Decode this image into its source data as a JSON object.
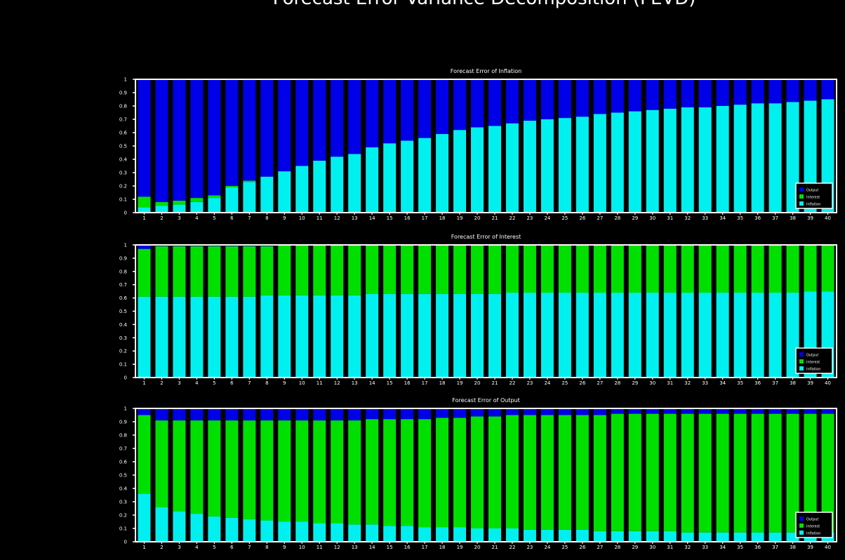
{
  "figure": {
    "title": "Forecast Error Variance Decomposition (FEVD)"
  },
  "colors": {
    "background": "#000000",
    "axes": "#ffffff",
    "Inflation": "#00f0f0",
    "Interest": "#00e000",
    "Output": "#0000e8"
  },
  "chart_data": [
    {
      "type": "bar",
      "stacked": true,
      "title": "Forecast Error of Inflation",
      "x": [
        1,
        2,
        3,
        4,
        5,
        6,
        7,
        8,
        9,
        10,
        11,
        12,
        13,
        14,
        15,
        16,
        17,
        18,
        19,
        20,
        21,
        22,
        23,
        24,
        25,
        26,
        27,
        28,
        29,
        30,
        31,
        32,
        33,
        34,
        35,
        36,
        37,
        38,
        39,
        40
      ],
      "ylim": [
        0,
        1
      ],
      "grid": false,
      "legend": "bottom-right",
      "series": [
        {
          "name": "Inflation",
          "values": [
            0.04,
            0.05,
            0.06,
            0.08,
            0.11,
            0.19,
            0.23,
            0.27,
            0.31,
            0.35,
            0.39,
            0.42,
            0.44,
            0.49,
            0.52,
            0.54,
            0.56,
            0.59,
            0.62,
            0.64,
            0.65,
            0.67,
            0.69,
            0.7,
            0.71,
            0.72,
            0.74,
            0.75,
            0.76,
            0.77,
            0.78,
            0.79,
            0.79,
            0.8,
            0.81,
            0.82,
            0.82,
            0.83,
            0.84,
            0.85
          ]
        },
        {
          "name": "Interest",
          "values": [
            0.08,
            0.03,
            0.03,
            0.03,
            0.02,
            0.01,
            0.01,
            0,
            0,
            0,
            0,
            0,
            0,
            0,
            0,
            0,
            0,
            0,
            0,
            0,
            0,
            0,
            0,
            0,
            0,
            0,
            0,
            0,
            0,
            0,
            0,
            0,
            0,
            0,
            0,
            0,
            0,
            0,
            0,
            0
          ]
        },
        {
          "name": "Output",
          "values": [
            0.88,
            0.92,
            0.91,
            0.89,
            0.87,
            0.8,
            0.76,
            0.73,
            0.69,
            0.65,
            0.61,
            0.58,
            0.56,
            0.51,
            0.48,
            0.46,
            0.44,
            0.41,
            0.38,
            0.36,
            0.35,
            0.33,
            0.31,
            0.3,
            0.29,
            0.28,
            0.26,
            0.25,
            0.24,
            0.23,
            0.22,
            0.21,
            0.21,
            0.2,
            0.19,
            0.18,
            0.18,
            0.17,
            0.16,
            0.15
          ]
        }
      ]
    },
    {
      "type": "bar",
      "stacked": true,
      "title": "Forecast Error of Interest",
      "x": [
        1,
        2,
        3,
        4,
        5,
        6,
        7,
        8,
        9,
        10,
        11,
        12,
        13,
        14,
        15,
        16,
        17,
        18,
        19,
        20,
        21,
        22,
        23,
        24,
        25,
        26,
        27,
        28,
        29,
        30,
        31,
        32,
        33,
        34,
        35,
        36,
        37,
        38,
        39,
        40
      ],
      "ylim": [
        0,
        1
      ],
      "grid": false,
      "legend": "bottom-right",
      "series": [
        {
          "name": "Inflation",
          "values": [
            0.61,
            0.61,
            0.61,
            0.61,
            0.61,
            0.61,
            0.61,
            0.62,
            0.62,
            0.62,
            0.62,
            0.62,
            0.62,
            0.63,
            0.63,
            0.63,
            0.63,
            0.63,
            0.63,
            0.63,
            0.63,
            0.64,
            0.64,
            0.64,
            0.64,
            0.64,
            0.64,
            0.64,
            0.64,
            0.64,
            0.64,
            0.64,
            0.64,
            0.64,
            0.64,
            0.64,
            0.64,
            0.64,
            0.65,
            0.65
          ]
        },
        {
          "name": "Interest",
          "values": [
            0.36,
            0.38,
            0.38,
            0.38,
            0.38,
            0.38,
            0.38,
            0.37,
            0.38,
            0.38,
            0.38,
            0.38,
            0.38,
            0.37,
            0.37,
            0.37,
            0.37,
            0.37,
            0.37,
            0.37,
            0.37,
            0.36,
            0.36,
            0.36,
            0.36,
            0.36,
            0.36,
            0.36,
            0.36,
            0.36,
            0.36,
            0.36,
            0.36,
            0.36,
            0.36,
            0.36,
            0.36,
            0.36,
            0.35,
            0.35
          ]
        },
        {
          "name": "Output",
          "values": [
            0.03,
            0.01,
            0.01,
            0.01,
            0.01,
            0.01,
            0.01,
            0.01,
            0,
            0,
            0,
            0,
            0,
            0,
            0,
            0,
            0,
            0,
            0,
            0,
            0,
            0,
            0,
            0,
            0,
            0,
            0,
            0,
            0,
            0,
            0,
            0,
            0,
            0,
            0,
            0,
            0,
            0,
            0,
            0
          ]
        }
      ]
    },
    {
      "type": "bar",
      "stacked": true,
      "title": "Forecast Error of Output",
      "x": [
        1,
        2,
        3,
        4,
        5,
        6,
        7,
        8,
        9,
        10,
        11,
        12,
        13,
        14,
        15,
        16,
        17,
        18,
        19,
        20,
        21,
        22,
        23,
        24,
        25,
        26,
        27,
        28,
        29,
        30,
        31,
        32,
        33,
        34,
        35,
        36,
        37,
        38,
        39,
        40
      ],
      "ylim": [
        0,
        1
      ],
      "grid": false,
      "legend": "bottom-right",
      "series": [
        {
          "name": "Inflation",
          "values": [
            0.36,
            0.26,
            0.23,
            0.21,
            0.19,
            0.18,
            0.17,
            0.16,
            0.15,
            0.15,
            0.14,
            0.14,
            0.13,
            0.13,
            0.12,
            0.12,
            0.11,
            0.11,
            0.11,
            0.1,
            0.1,
            0.1,
            0.09,
            0.09,
            0.09,
            0.09,
            0.08,
            0.08,
            0.08,
            0.08,
            0.08,
            0.07,
            0.07,
            0.07,
            0.07,
            0.07,
            0.07,
            0.07,
            0.07,
            0.07
          ]
        },
        {
          "name": "Interest",
          "values": [
            0.59,
            0.65,
            0.68,
            0.7,
            0.72,
            0.73,
            0.74,
            0.75,
            0.76,
            0.76,
            0.77,
            0.77,
            0.78,
            0.79,
            0.8,
            0.8,
            0.81,
            0.82,
            0.82,
            0.84,
            0.84,
            0.85,
            0.86,
            0.86,
            0.86,
            0.86,
            0.87,
            0.88,
            0.88,
            0.88,
            0.88,
            0.89,
            0.89,
            0.89,
            0.89,
            0.89,
            0.89,
            0.89,
            0.89,
            0.89
          ]
        },
        {
          "name": "Output",
          "values": [
            0.05,
            0.09,
            0.09,
            0.09,
            0.09,
            0.09,
            0.09,
            0.09,
            0.09,
            0.09,
            0.09,
            0.09,
            0.09,
            0.08,
            0.08,
            0.08,
            0.08,
            0.07,
            0.07,
            0.06,
            0.06,
            0.05,
            0.05,
            0.05,
            0.05,
            0.05,
            0.05,
            0.04,
            0.04,
            0.04,
            0.04,
            0.04,
            0.04,
            0.04,
            0.04,
            0.04,
            0.04,
            0.04,
            0.04,
            0.04
          ]
        }
      ]
    }
  ]
}
